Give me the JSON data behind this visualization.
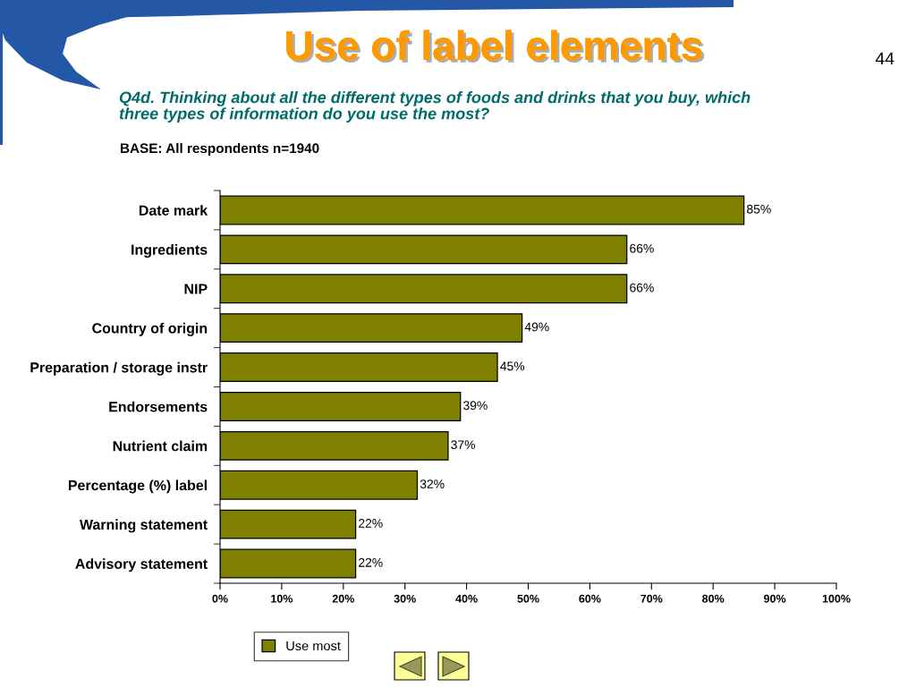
{
  "chart_data": {
    "type": "bar",
    "orientation": "horizontal",
    "title": "Use of label elements",
    "subtitle": "Q4d. Thinking about all the different types of foods and drinks that you buy, which\nthree types of information do you use the most?",
    "annotations": [
      "BASE: All respondents n=1940",
      "44"
    ],
    "categories": [
      "Date mark",
      "Ingredients",
      "NIP",
      "Country of origin",
      "Preparation / storage instr",
      "Endorsements",
      "Nutrient claim",
      "Percentage (%) label",
      "Warning statement",
      "Advisory statement"
    ],
    "series": [
      {
        "name": "Use most",
        "color": "#808000",
        "values": [
          85,
          66,
          66,
          49,
          45,
          39,
          37,
          32,
          22,
          22
        ],
        "value_labels": [
          "85%",
          "66%",
          "66%",
          "49%",
          "45%",
          "39%",
          "37%",
          "32%",
          "22%",
          "22%"
        ]
      }
    ],
    "xlim": [
      0,
      100
    ],
    "xticks": [
      {
        "value": 0,
        "label": "0%"
      },
      {
        "value": 10,
        "label": "10%"
      },
      {
        "value": 20,
        "label": "20%"
      },
      {
        "value": 30,
        "label": "30%"
      },
      {
        "value": 40,
        "label": "40%"
      },
      {
        "value": 50,
        "label": "50%"
      },
      {
        "value": 60,
        "label": "60%"
      },
      {
        "value": 70,
        "label": "70%"
      },
      {
        "value": 80,
        "label": "80%"
      },
      {
        "value": 90,
        "label": "90%"
      },
      {
        "value": 100,
        "label": "100%"
      }
    ],
    "grid": false,
    "legend": "bottom"
  }
}
